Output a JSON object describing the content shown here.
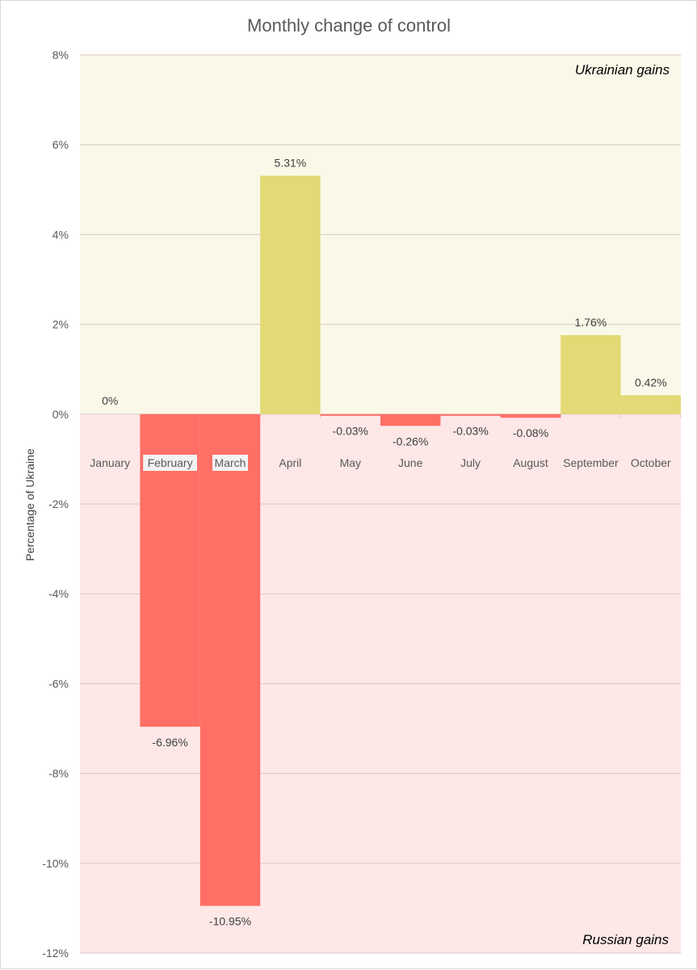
{
  "chart_data": {
    "type": "bar",
    "title": "Monthly change of control",
    "xlabel": "",
    "ylabel": "Percentage of Ukraine",
    "ylim": [
      -12,
      8
    ],
    "yticks": [
      8,
      6,
      4,
      2,
      0,
      -2,
      -4,
      -6,
      -8,
      -10,
      -12
    ],
    "ytick_labels": [
      "8%",
      "6%",
      "4%",
      "2%",
      "0%",
      "-2%",
      "-4%",
      "-6%",
      "-8%",
      "-10%",
      "-12%"
    ],
    "categories": [
      "January",
      "February",
      "March",
      "April",
      "May",
      "June",
      "July",
      "August",
      "September",
      "October"
    ],
    "values": [
      0,
      -6.96,
      -10.95,
      5.31,
      -0.03,
      -0.26,
      -0.03,
      -0.08,
      1.76,
      0.42
    ],
    "data_labels": [
      "0%",
      "-6.96%",
      "-10.95%",
      "5.31%",
      "-0.03%",
      "-0.26%",
      "-0.03%",
      "-0.08%",
      "1.76%",
      "0.42%"
    ],
    "annotations": {
      "positive_region": "Ukrainian gains",
      "negative_region": "Russian gains"
    },
    "colors": {
      "positive_bar": "#e3d975",
      "negative_bar": "#ff6f66",
      "positive_bg": "#faf8e8",
      "negative_bg": "#fde7e7",
      "grid": "#d9c9c5",
      "label_box": "#f2f2f2"
    },
    "grid": true
  }
}
